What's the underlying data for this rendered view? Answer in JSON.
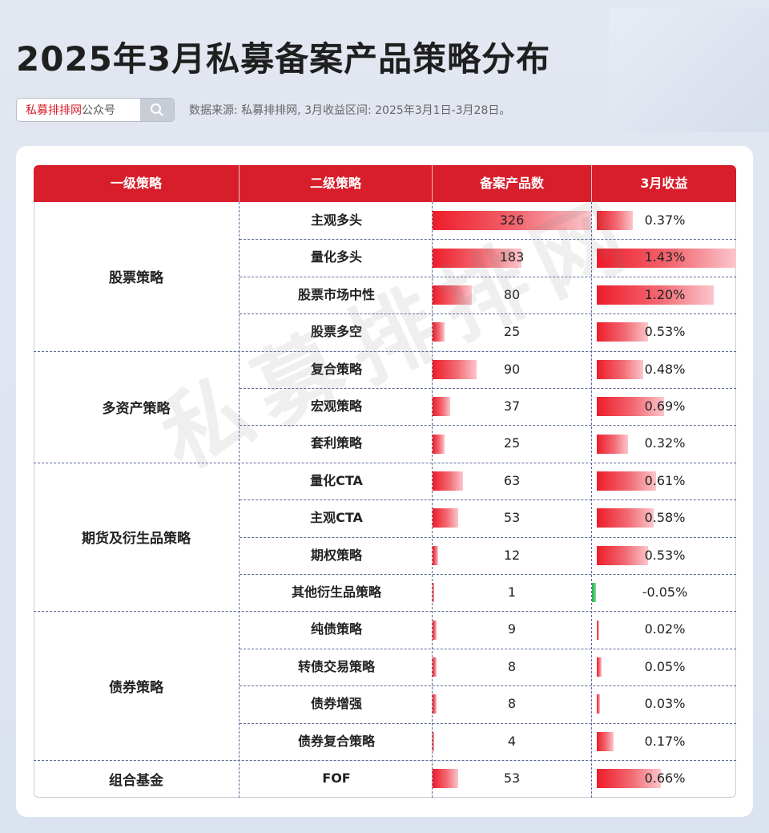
{
  "title": "2025年3月私募备案产品策略分布",
  "brand": {
    "red": "私募排排网",
    "gray": "公众号"
  },
  "source": "数据来源: 私募排排网, 3月收益区间: 2025年3月1日-3月28日。",
  "watermark": "私募排排网",
  "colors": {
    "accent": "#d81e2a",
    "positive_bar": "#ee1c2a",
    "negative_bar": "#1ab34c"
  },
  "chart_data": {
    "type": "table",
    "columns": [
      "一级策略",
      "二级策略",
      "备案产品数",
      "3月收益"
    ],
    "groups": [
      {
        "name": "股票策略",
        "rows": [
          {
            "sub": "主观多头",
            "count": 326,
            "ret": 0.37,
            "ret_label": "0.37%"
          },
          {
            "sub": "量化多头",
            "count": 183,
            "ret": 1.43,
            "ret_label": "1.43%"
          },
          {
            "sub": "股票市场中性",
            "count": 80,
            "ret": 1.2,
            "ret_label": "1.20%"
          },
          {
            "sub": "股票多空",
            "count": 25,
            "ret": 0.53,
            "ret_label": "0.53%"
          }
        ]
      },
      {
        "name": "多资产策略",
        "rows": [
          {
            "sub": "复合策略",
            "count": 90,
            "ret": 0.48,
            "ret_label": "0.48%"
          },
          {
            "sub": "宏观策略",
            "count": 37,
            "ret": 0.69,
            "ret_label": "0.69%"
          },
          {
            "sub": "套利策略",
            "count": 25,
            "ret": 0.32,
            "ret_label": "0.32%"
          }
        ]
      },
      {
        "name": "期货及衍生品策略",
        "rows": [
          {
            "sub": "量化CTA",
            "count": 63,
            "ret": 0.61,
            "ret_label": "0.61%"
          },
          {
            "sub": "主观CTA",
            "count": 53,
            "ret": 0.58,
            "ret_label": "0.58%"
          },
          {
            "sub": "期权策略",
            "count": 12,
            "ret": 0.53,
            "ret_label": "0.53%"
          },
          {
            "sub": "其他衍生品策略",
            "count": 1,
            "ret": -0.05,
            "ret_label": "-0.05%"
          }
        ]
      },
      {
        "name": "债券策略",
        "rows": [
          {
            "sub": "纯债策略",
            "count": 9,
            "ret": 0.02,
            "ret_label": "0.02%"
          },
          {
            "sub": "转债交易策略",
            "count": 8,
            "ret": 0.05,
            "ret_label": "0.05%"
          },
          {
            "sub": "债券增强",
            "count": 8,
            "ret": 0.03,
            "ret_label": "0.03%"
          },
          {
            "sub": "债券复合策略",
            "count": 4,
            "ret": 0.17,
            "ret_label": "0.17%"
          }
        ]
      },
      {
        "name": "组合基金",
        "rows": [
          {
            "sub": "FOF",
            "count": 53,
            "ret": 0.66,
            "ret_label": "0.66%"
          }
        ]
      }
    ]
  }
}
